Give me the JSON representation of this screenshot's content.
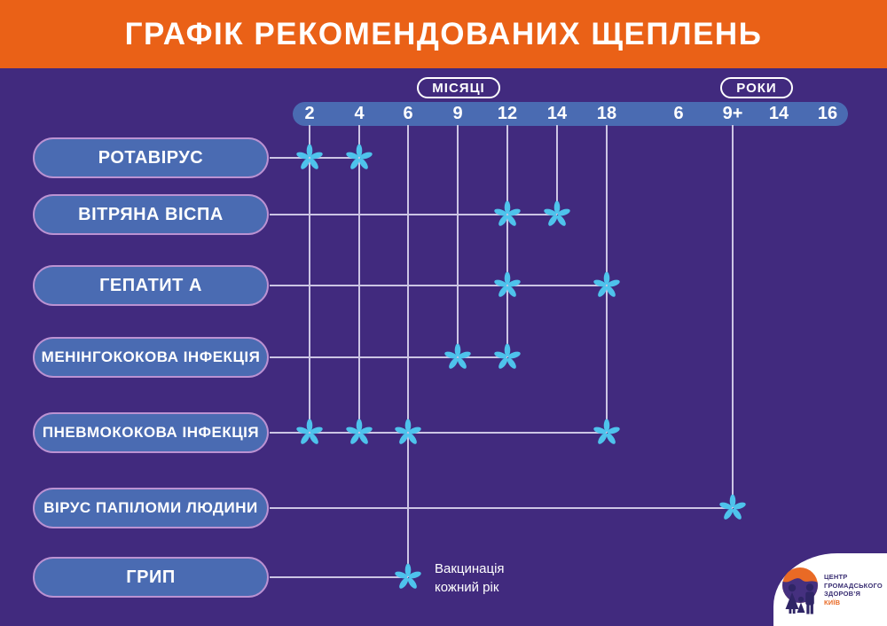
{
  "header": {
    "title": "ГРАФІК РЕКОМЕНДОВАНИХ ЩЕПЛЕНЬ"
  },
  "flu_note": {
    "line1": "Вакцинація",
    "line2": "кожний рік"
  },
  "logo": {
    "org_line1": "ЦЕНТР",
    "org_line2": "ГРОМАДСЬКОГО",
    "org_line3": "ЗДОРОВ’Я",
    "city": "КИЇВ"
  },
  "colors": {
    "header_orange": "#ea6117",
    "background_purple": "#412a7e",
    "bar_blue": "#4a6bb2",
    "pill_border_lilac": "#bb92d2",
    "grid_line_lavender": "#ccc5e4",
    "marker_blue": "#4ec3ec",
    "logo_navy": "#3a2f73",
    "logo_orange": "#e96a25",
    "text_white": "#ffffff"
  },
  "chart_data": {
    "type": "scatter",
    "title": "ГРАФІК РЕКОМЕНДОВАНИХ ЩЕПЛЕНЬ",
    "legend_position": "none",
    "grid": "partial drop-lines from axis to marks",
    "x_groups": [
      {
        "label": "МІСЯЦІ",
        "tick_ids": [
          "2m",
          "4m",
          "6m",
          "9m",
          "12m",
          "14m",
          "18m"
        ]
      },
      {
        "label": "РОКИ",
        "tick_ids": [
          "6y",
          "9y",
          "14y",
          "16y"
        ]
      }
    ],
    "ticks": [
      {
        "id": "2m",
        "label": "2"
      },
      {
        "id": "4m",
        "label": "4"
      },
      {
        "id": "6m",
        "label": "6"
      },
      {
        "id": "9m",
        "label": "9"
      },
      {
        "id": "12m",
        "label": "12"
      },
      {
        "id": "14m",
        "label": "14"
      },
      {
        "id": "18m",
        "label": "18"
      },
      {
        "id": "6y",
        "label": "6"
      },
      {
        "id": "9y",
        "label": "9+"
      },
      {
        "id": "14y",
        "label": "14"
      },
      {
        "id": "16y",
        "label": "16"
      }
    ],
    "rows": [
      {
        "label": "РОТАВІРУС",
        "marks": [
          "2m",
          "4m"
        ]
      },
      {
        "label": "ВІТРЯНА ВІСПА",
        "marks": [
          "12m",
          "14m"
        ]
      },
      {
        "label": "ГЕПАТИТ А",
        "marks": [
          "12m",
          "18m"
        ]
      },
      {
        "label": "МЕНІНГОКОКОВА ІНФЕКЦІЯ",
        "marks": [
          "9m",
          "12m"
        ]
      },
      {
        "label": "ПНЕВМОКОКОВА ІНФЕКЦІЯ",
        "marks": [
          "2m",
          "4m",
          "6m",
          "18m"
        ]
      },
      {
        "label": "ВІРУС ПАПІЛОМИ ЛЮДИНИ",
        "marks": [
          "9y"
        ]
      },
      {
        "label": "ГРИП",
        "marks": [
          "6m"
        ]
      }
    ]
  }
}
